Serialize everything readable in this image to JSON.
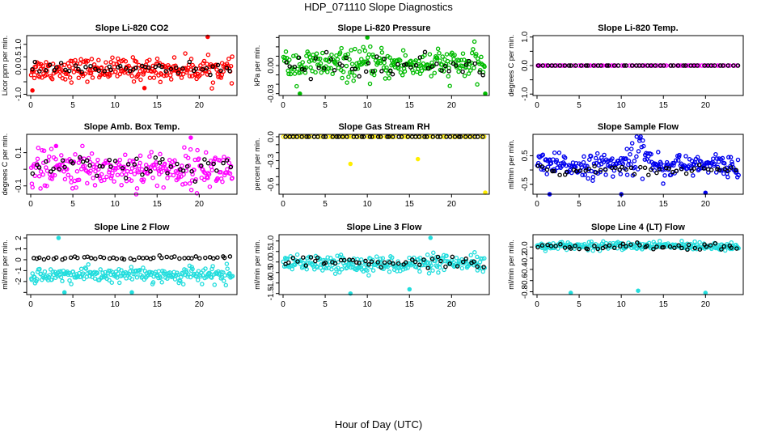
{
  "figure": {
    "title": "HDP_071110  Slope Diagnostics",
    "xlabel": "Hour of Day (UTC)"
  },
  "chart_data": [
    {
      "type": "scatter",
      "title": "Slope Li-820 CO2",
      "ylabel": "Licor ppm per min.",
      "xlim": [
        0,
        24
      ],
      "ylim": [
        -1.05,
        1.35
      ],
      "x_ticks": [
        0,
        5,
        10,
        15,
        20
      ],
      "y_ticks": [
        -1.0,
        -0.5,
        0.0,
        0.5,
        1.0
      ],
      "y_tick_labels": [
        "-1.0",
        "",
        "0.0",
        "0.5",
        "1.0"
      ],
      "series": [
        {
          "color": "#ff0000",
          "center": 0.0,
          "spread": 0.22,
          "count": 260,
          "outliers": [
            [
              21,
              1.3
            ],
            [
              0.2,
              -0.85
            ],
            [
              13.5,
              -0.75
            ]
          ]
        },
        {
          "color": "#000000",
          "center": 0.02,
          "spread": 0.1,
          "count": 48
        }
      ]
    },
    {
      "type": "scatter",
      "title": "Slope Li-820 Pressure",
      "ylabel": "kPa per min.",
      "xlim": [
        0,
        24
      ],
      "ylim": [
        -0.032,
        0.032
      ],
      "x_ticks": [
        0,
        5,
        10,
        15,
        20
      ],
      "y_ticks": [
        -0.03,
        -0.02,
        -0.01,
        0.0,
        0.01,
        0.02,
        0.03
      ],
      "y_tick_labels": [
        "-0.03",
        "",
        "",
        "0.00",
        "",
        "",
        ""
      ],
      "series": [
        {
          "color": "#00bb00",
          "center": 0.001,
          "spread": 0.008,
          "count": 260,
          "outliers": [
            [
              10,
              0.03
            ],
            [
              24,
              -0.03
            ],
            [
              2,
              -0.03
            ]
          ]
        },
        {
          "color": "#000000",
          "center": 0.0,
          "spread": 0.006,
          "count": 48
        }
      ]
    },
    {
      "type": "scatter",
      "title": "Slope Li-820 Temp.",
      "ylabel": "degrees C per min.",
      "xlim": [
        0,
        24
      ],
      "ylim": [
        -1.05,
        1.05
      ],
      "x_ticks": [
        0,
        5,
        10,
        15,
        20
      ],
      "y_ticks": [
        -1.0,
        -0.5,
        0.0,
        0.5,
        1.0
      ],
      "y_tick_labels": [
        "-1.0",
        "",
        "0.0",
        "",
        "1.0"
      ],
      "series": [
        {
          "color": "#ff00ff",
          "center": 0.0,
          "spread": 0.0,
          "count": 80,
          "outliers": [
            [
              0.1,
              0.0
            ]
          ]
        },
        {
          "color": "#000000",
          "center": 0.0,
          "spread": 0.0,
          "count": 48
        }
      ]
    },
    {
      "type": "scatter",
      "title": "Slope Amb. Box Temp.",
      "ylabel": "degrees C per min.",
      "xlim": [
        0,
        24
      ],
      "ylim": [
        -0.15,
        0.21
      ],
      "x_ticks": [
        0,
        5,
        10,
        15,
        20
      ],
      "y_ticks": [
        -0.1,
        0.0,
        0.1
      ],
      "y_tick_labels": [
        "-0.1",
        "",
        "0.1"
      ],
      "series": [
        {
          "color": "#ff00ff",
          "center": 0.0,
          "spread": 0.055,
          "count": 260,
          "outliers": [
            [
              3,
              0.14
            ],
            [
              19,
              0.19
            ]
          ]
        },
        {
          "color": "#000000",
          "center": 0.0,
          "spread": 0.04,
          "count": 48
        }
      ]
    },
    {
      "type": "scatter",
      "title": "Slope Gas Stream RH",
      "ylabel": "percent per min.",
      "xlim": [
        0,
        24
      ],
      "ylim": [
        -0.72,
        0.03
      ],
      "x_ticks": [
        0,
        5,
        10,
        15,
        20
      ],
      "y_ticks": [
        0.0,
        -0.1,
        -0.2,
        -0.3,
        -0.4,
        -0.5,
        -0.6
      ],
      "y_tick_labels": [
        "0.0",
        "",
        "",
        "-0.3",
        "",
        "",
        "-0.6"
      ],
      "series": [
        {
          "color": "#ffee00",
          "center": 0.0,
          "spread": 0.0,
          "count": 60,
          "outliers": [
            [
              8,
              -0.34
            ],
            [
              16,
              -0.28
            ],
            [
              24,
              -0.7
            ]
          ]
        },
        {
          "color": "#000000",
          "center": 0.0,
          "spread": 0.0,
          "count": 48
        }
      ]
    },
    {
      "type": "scatter",
      "title": "Slope Sample Flow",
      "ylabel": "ml/min per min.",
      "xlim": [
        0,
        24
      ],
      "ylim": [
        -0.85,
        1.25
      ],
      "x_ticks": [
        0,
        5,
        10,
        15,
        20
      ],
      "y_ticks": [
        -0.5,
        0.0,
        0.5
      ],
      "y_tick_labels": [
        "-0.5",
        "",
        "0.5"
      ],
      "series": [
        {
          "color": "#0000ee",
          "center": 0.15,
          "spread": 0.2,
          "count": 260,
          "outliers": [
            [
              1.5,
              -0.85
            ],
            [
              10,
              -0.85
            ],
            [
              20,
              -0.8
            ]
          ],
          "bump": [
            [
              10,
              14,
              0.9
            ]
          ]
        },
        {
          "color": "#000000",
          "center": 0.0,
          "spread": 0.08,
          "count": 48
        }
      ]
    },
    {
      "type": "scatter",
      "title": "Slope Line 2 Flow",
      "ylabel": "ml/min per min.",
      "xlim": [
        0,
        24
      ],
      "ylim": [
        -3.2,
        2.3
      ],
      "x_ticks": [
        0,
        5,
        10,
        15,
        20
      ],
      "y_ticks": [
        -3,
        -2,
        -1,
        0,
        1,
        2
      ],
      "y_tick_labels": [
        "",
        "-2",
        "-1",
        "0",
        "1",
        "2"
      ],
      "series": [
        {
          "color": "#22dddd",
          "center": -1.4,
          "spread": 0.35,
          "count": 240,
          "outliers": [
            [
              3.3,
              2.0
            ],
            [
              4,
              -3.0
            ],
            [
              12,
              -3.0
            ]
          ],
          "bump": [
            [
              11,
              14,
              -1.0
            ]
          ]
        },
        {
          "color": "#000000",
          "center": 0.15,
          "spread": 0.08,
          "count": 48
        }
      ]
    },
    {
      "type": "scatter",
      "title": "Slope Line 3 Flow",
      "ylabel": "ml/min per min.",
      "xlim": [
        0,
        24
      ],
      "ylim": [
        -1.55,
        1.3
      ],
      "x_ticks": [
        0,
        5,
        10,
        15,
        20
      ],
      "y_ticks": [
        -1.5,
        -1.0,
        -0.5,
        0.0,
        0.5,
        1.0
      ],
      "y_tick_labels": [
        "-1.5",
        "-1.0",
        "-0.5",
        "0.0",
        "0.5",
        "1.0"
      ],
      "series": [
        {
          "color": "#22dddd",
          "center": -0.1,
          "spread": 0.2,
          "count": 260,
          "outliers": [
            [
              8,
              -1.5
            ],
            [
              17.5,
              1.15
            ],
            [
              15,
              -1.3
            ]
          ]
        },
        {
          "color": "#000000",
          "center": 0.0,
          "spread": 0.12,
          "count": 48
        }
      ]
    },
    {
      "type": "scatter",
      "title": "Slope Line 4 (LT) Flow",
      "ylabel": "ml/min per min.",
      "xlim": [
        0,
        24
      ],
      "ylim": [
        -0.85,
        0.22
      ],
      "x_ticks": [
        0,
        5,
        10,
        15,
        20
      ],
      "y_ticks": [
        0.0,
        -0.2,
        -0.4,
        -0.6,
        -0.8
      ],
      "y_tick_labels": [
        "0.0",
        "-0.2",
        "-0.4",
        "-0.6",
        "-0.8"
      ],
      "series": [
        {
          "color": "#22dddd",
          "center": 0.02,
          "spread": 0.035,
          "count": 240,
          "outliers": [
            [
              4,
              -0.82
            ],
            [
              12,
              -0.78
            ],
            [
              20,
              -0.82
            ]
          ]
        },
        {
          "color": "#000000",
          "center": 0.0,
          "spread": 0.03,
          "count": 48
        }
      ]
    }
  ]
}
